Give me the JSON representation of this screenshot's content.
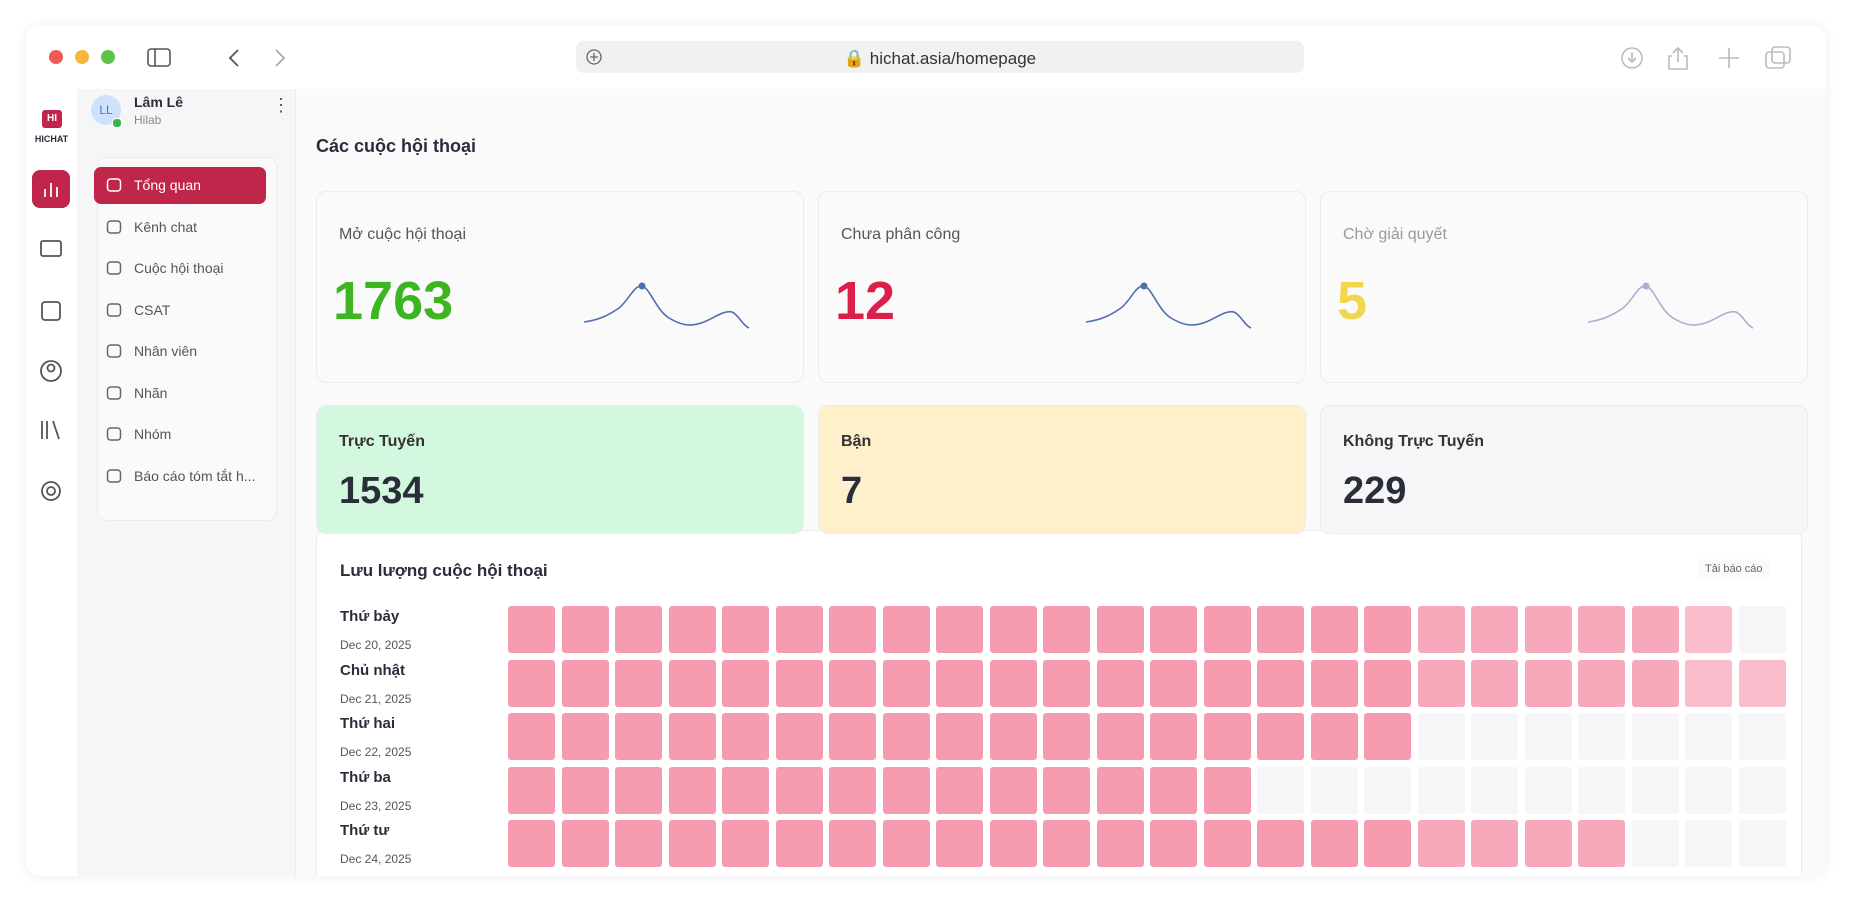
{
  "browser": {
    "url": "hichat.asia/homepage"
  },
  "rail": {
    "logo": "HICHAT"
  },
  "sidebar": {
    "user": {
      "initials": "LL",
      "name": "Lâm Lê",
      "org": "Hilab"
    },
    "nav": [
      "Tổng quan",
      "Kênh chat",
      "Cuộc hội thoại",
      "CSAT",
      "Nhân viên",
      "Nhãn",
      "Nhóm",
      "Báo cáo tóm tắt h..."
    ]
  },
  "main": {
    "title": "Các cuộc hội thoại",
    "stats": [
      {
        "label": "Mở cuộc hội thoại",
        "value": 1763,
        "color": "#3cb521"
      },
      {
        "label": "Chưa phân công",
        "value": 12,
        "color": "#dc1f4a"
      },
      {
        "label": "Chờ giải quyết",
        "value": 5,
        "color": "#f2d64b"
      }
    ],
    "status": [
      {
        "label": "Trực Tuyến",
        "value": 1534,
        "color": "#d4f8df"
      },
      {
        "label": "Bận",
        "value": 7,
        "color": "#fff0cc"
      },
      {
        "label": "Không Trực Tuyến",
        "value": 229,
        "color": "#f6f6f8"
      }
    ],
    "traffic": {
      "title": "Lưu lượng cuộc hội thoại",
      "action": "Tải báo cáo",
      "columns": 24,
      "rows": [
        {
          "day": "Thứ bảy",
          "date": "Dec 20, 2025",
          "filled": 23
        },
        {
          "day": "Chủ nhật",
          "date": "Dec 21, 2025",
          "filled": 24
        },
        {
          "day": "Thứ hai",
          "date": "Dec 22, 2025",
          "filled": 17
        },
        {
          "day": "Thứ ba",
          "date": "Dec 23, 2025",
          "filled": 14
        },
        {
          "day": "Thứ tư",
          "date": "Dec 24, 2025",
          "filled": 21
        }
      ]
    }
  }
}
